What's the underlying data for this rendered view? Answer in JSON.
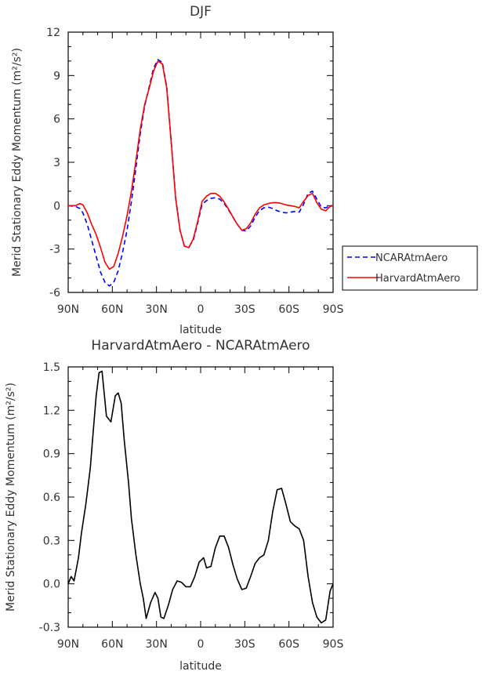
{
  "chart_data": [
    {
      "type": "line",
      "title": "DJF",
      "xlabel": "latitude",
      "ylabel": "Merid Stationary Eddy Momentum (m²/s²)",
      "x_tick_labels": [
        "90N",
        "60N",
        "30N",
        "0",
        "30S",
        "60S",
        "90S"
      ],
      "y_tick_labels": [
        "12",
        "9",
        "6",
        "3",
        "0",
        "-3",
        "-6"
      ],
      "xlim": [
        -90,
        90
      ],
      "ylim": [
        -6,
        12
      ],
      "legend_placement": "outside-right",
      "series": [
        {
          "name": "NCARAtmAero",
          "color": "#0000ff",
          "dash": "dashed",
          "x": [
            -90,
            -85,
            -82,
            -80,
            -77,
            -74,
            -71,
            -68,
            -65,
            -62,
            -59,
            -56,
            -53,
            -50,
            -47,
            -44,
            -41,
            -38,
            -35,
            -32,
            -29,
            -26,
            -23,
            -20,
            -17,
            -14,
            -11,
            -8,
            -5,
            -2,
            1,
            4,
            7,
            10,
            13,
            16,
            19,
            22,
            25,
            28,
            31,
            34,
            37,
            40,
            43,
            46,
            49,
            52,
            55,
            58,
            61,
            64,
            67,
            70,
            73,
            76,
            79,
            82,
            85,
            88,
            90
          ],
          "y": [
            0,
            -0.05,
            -0.2,
            -0.5,
            -1.3,
            -2.4,
            -3.5,
            -4.6,
            -5.3,
            -5.55,
            -5.3,
            -4.5,
            -3.2,
            -1.7,
            0.3,
            2.6,
            5.0,
            6.9,
            8.2,
            9.5,
            10.1,
            9.9,
            8.2,
            4.5,
            0.6,
            -1.7,
            -2.8,
            -2.85,
            -2.4,
            -1.2,
            0.1,
            0.35,
            0.5,
            0.55,
            0.45,
            0.15,
            -0.3,
            -0.8,
            -1.3,
            -1.7,
            -1.75,
            -1.4,
            -0.8,
            -0.35,
            -0.15,
            -0.1,
            -0.2,
            -0.35,
            -0.45,
            -0.5,
            -0.45,
            -0.4,
            -0.45,
            0.1,
            0.85,
            1.0,
            0.45,
            -0.1,
            -0.15,
            0.0,
            0.0
          ]
        },
        {
          "name": "HarvardAtmAero",
          "color": "#ff0000",
          "dash": "solid",
          "x": [
            -90,
            -85,
            -82,
            -80,
            -77,
            -74,
            -71,
            -68,
            -65,
            -62,
            -59,
            -56,
            -53,
            -50,
            -47,
            -44,
            -41,
            -38,
            -35,
            -32,
            -29,
            -26,
            -23,
            -20,
            -17,
            -14,
            -11,
            -8,
            -5,
            -2,
            1,
            4,
            7,
            10,
            13,
            16,
            19,
            22,
            25,
            28,
            31,
            34,
            37,
            40,
            43,
            46,
            49,
            52,
            55,
            58,
            61,
            64,
            67,
            70,
            73,
            76,
            79,
            82,
            85,
            88,
            90
          ],
          "y": [
            0,
            0.0,
            0.15,
            0.05,
            -0.5,
            -1.3,
            -2.0,
            -2.9,
            -3.9,
            -4.4,
            -4.2,
            -3.3,
            -2.1,
            -0.7,
            1.0,
            3.1,
            5.3,
            7.0,
            8.1,
            9.3,
            10.0,
            9.8,
            8.1,
            4.4,
            0.5,
            -1.7,
            -2.8,
            -2.9,
            -2.3,
            -1.1,
            0.3,
            0.65,
            0.85,
            0.85,
            0.65,
            0.25,
            -0.25,
            -0.8,
            -1.3,
            -1.7,
            -1.6,
            -1.2,
            -0.6,
            -0.15,
            0.05,
            0.15,
            0.2,
            0.2,
            0.15,
            0.05,
            0.0,
            -0.05,
            -0.15,
            0.3,
            0.7,
            0.85,
            0.2,
            -0.25,
            -0.35,
            -0.05,
            0.0
          ]
        }
      ]
    },
    {
      "type": "line",
      "title": "HarvardAtmAero - NCARAtmAero",
      "xlabel": "latitude",
      "ylabel": "Merid Stationary Eddy Momentum (m²/s²)",
      "x_tick_labels": [
        "90N",
        "60N",
        "30N",
        "0",
        "30S",
        "60S",
        "90S"
      ],
      "y_tick_labels": [
        "1.5",
        "1.2",
        "0.9",
        "0.6",
        "0.3",
        "0.0",
        "-0.3"
      ],
      "xlim": [
        -90,
        90
      ],
      "ylim": [
        -0.3,
        1.5
      ],
      "series": [
        {
          "color": "#000000",
          "x": [
            -90,
            -88,
            -86,
            -83,
            -81,
            -78,
            -75,
            -73,
            -71,
            -69,
            -67,
            -64,
            -61,
            -58,
            -56,
            -54,
            -52,
            -49,
            -47,
            -44,
            -41,
            -39,
            -37,
            -34,
            -31,
            -29,
            -27,
            -25,
            -22,
            -19,
            -16,
            -13,
            -10,
            -7,
            -4,
            -1,
            2,
            4,
            7,
            10,
            13,
            16,
            19,
            22,
            25,
            28,
            31,
            34,
            37,
            40,
            43,
            46,
            49,
            52,
            55,
            58,
            61,
            64,
            67,
            70,
            73,
            76,
            79,
            82,
            85,
            88,
            90
          ],
          "y": [
            0.0,
            0.05,
            0.02,
            0.18,
            0.35,
            0.55,
            0.8,
            1.05,
            1.3,
            1.46,
            1.47,
            1.16,
            1.12,
            1.3,
            1.32,
            1.25,
            1.0,
            0.7,
            0.45,
            0.2,
            0.0,
            -0.1,
            -0.24,
            -0.13,
            -0.06,
            -0.1,
            -0.23,
            -0.24,
            -0.15,
            -0.04,
            0.02,
            0.01,
            -0.02,
            -0.02,
            0.05,
            0.15,
            0.18,
            0.11,
            0.12,
            0.25,
            0.33,
            0.33,
            0.25,
            0.13,
            0.03,
            -0.04,
            -0.03,
            0.05,
            0.14,
            0.18,
            0.2,
            0.3,
            0.5,
            0.65,
            0.66,
            0.55,
            0.43,
            0.4,
            0.38,
            0.3,
            0.05,
            -0.13,
            -0.23,
            -0.27,
            -0.25,
            -0.05,
            0.0
          ]
        }
      ]
    }
  ]
}
